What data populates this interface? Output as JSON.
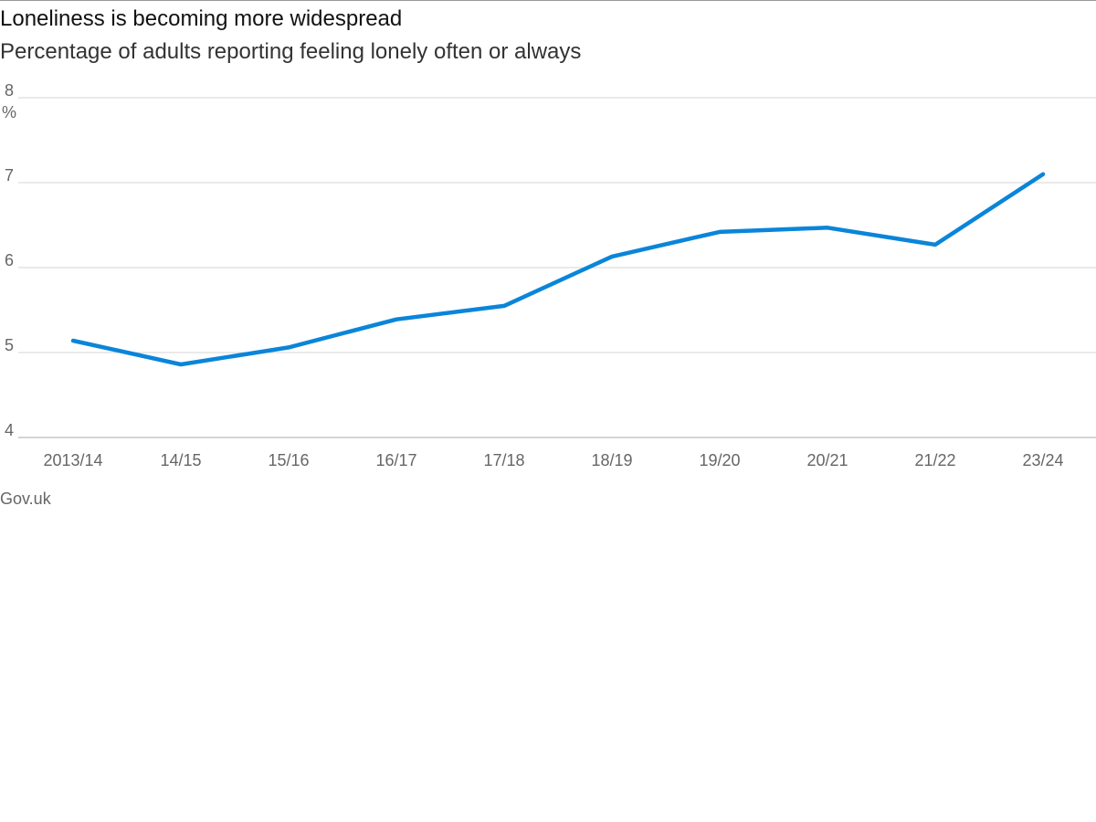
{
  "header": {
    "title": "Loneliness is becoming more widespread",
    "subtitle": "Percentage of adults reporting feeling lonely often or always"
  },
  "footer": {
    "source": "Gov.uk"
  },
  "colors": {
    "line": "#0a85d9",
    "grid": "#dddddd",
    "axis_text": "#666666"
  },
  "chart_data": {
    "type": "line",
    "title": "Loneliness is becoming more widespread",
    "subtitle": "Percentage of adults reporting feeling lonely often or always",
    "categories": [
      "2013/14",
      "14/15",
      "15/16",
      "16/17",
      "17/18",
      "18/19",
      "19/20",
      "20/21",
      "21/22",
      "23/24"
    ],
    "series": [
      {
        "values": [
          5.14,
          4.86,
          5.06,
          5.39,
          5.55,
          6.13,
          6.42,
          6.47,
          6.27,
          7.1
        ]
      }
    ],
    "ylim": [
      4,
      8
    ],
    "yticks": [
      4,
      5,
      6,
      7,
      8
    ],
    "yunit": "%",
    "xlabel": "",
    "ylabel": "",
    "grid": "horizontal",
    "legend": "none"
  }
}
